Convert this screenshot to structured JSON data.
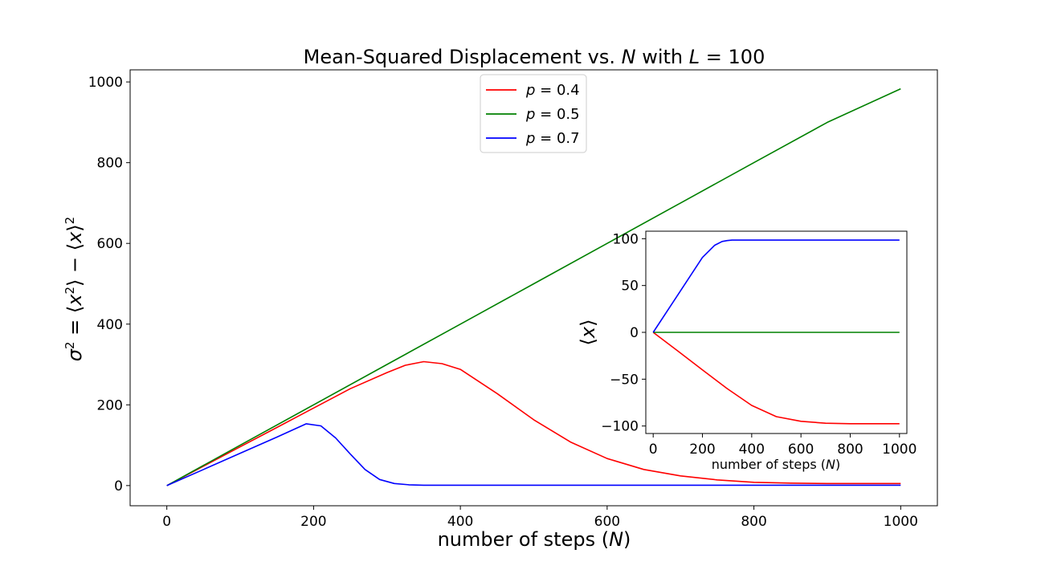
{
  "chart_data": [
    {
      "type": "line",
      "title": "Mean-Squared Displacement  vs. N with L = 100",
      "xlabel": "number of steps (N)",
      "ylabel": "σ² = ⟨x²⟩ − ⟨x⟩²",
      "xlim": [
        -50,
        1050
      ],
      "ylim": [
        -50,
        1030
      ],
      "xticks": [
        0,
        200,
        400,
        600,
        800,
        1000
      ],
      "yticks": [
        0,
        200,
        400,
        600,
        800,
        1000
      ],
      "grid": false,
      "legend": {
        "placement": "top-center",
        "entries": [
          {
            "label": "p = 0.4",
            "color": "#ff0000"
          },
          {
            "label": "p = 0.5",
            "color": "#008000"
          },
          {
            "label": "p = 0.7",
            "color": "#0000ff"
          }
        ]
      },
      "series": [
        {
          "name": "p = 0.4",
          "color": "#ff0000",
          "x": [
            0,
            50,
            100,
            150,
            200,
            250,
            300,
            325,
            350,
            375,
            400,
            450,
            500,
            550,
            600,
            650,
            700,
            750,
            800,
            850,
            900,
            950,
            1000
          ],
          "y": [
            0,
            48,
            96,
            144,
            192,
            240,
            280,
            298,
            307,
            302,
            288,
            228,
            163,
            108,
            67,
            40,
            24,
            14,
            8,
            6,
            5,
            5,
            5
          ]
        },
        {
          "name": "p = 0.5",
          "color": "#008000",
          "x": [
            0,
            100,
            200,
            300,
            400,
            500,
            600,
            700,
            800,
            900,
            1000
          ],
          "y": [
            0,
            100,
            200,
            300,
            400,
            500,
            600,
            700,
            800,
            900,
            983
          ]
        },
        {
          "name": "p = 0.7",
          "color": "#0000ff",
          "x": [
            0,
            50,
            100,
            150,
            190,
            210,
            230,
            250,
            270,
            290,
            310,
            330,
            350,
            400,
            500,
            600,
            700,
            800,
            900,
            1000
          ],
          "y": [
            0,
            40,
            80,
            120,
            153,
            148,
            118,
            78,
            40,
            15,
            5,
            2,
            1,
            1,
            1,
            1,
            1,
            1,
            1,
            1
          ]
        }
      ]
    },
    {
      "type": "line",
      "title": "",
      "xlabel": "number of steps (N)",
      "ylabel": "⟨x⟩",
      "xlim": [
        -30,
        1030
      ],
      "ylim": [
        -108,
        108
      ],
      "xticks": [
        0,
        200,
        400,
        600,
        800,
        1000
      ],
      "yticks": [
        -100,
        -50,
        0,
        50,
        100
      ],
      "grid": false,
      "placement": "inset-right",
      "series": [
        {
          "color": "#ff0000",
          "x": [
            0,
            100,
            200,
            300,
            400,
            500,
            600,
            700,
            800,
            900,
            1000
          ],
          "y": [
            0,
            -20,
            -40,
            -60,
            -78,
            -90,
            -95,
            -97,
            -97.5,
            -97.5,
            -97.5
          ]
        },
        {
          "color": "#008000",
          "x": [
            0,
            500,
            1000
          ],
          "y": [
            0,
            0,
            0
          ]
        },
        {
          "color": "#0000ff",
          "x": [
            0,
            100,
            200,
            250,
            280,
            300,
            320,
            400,
            600,
            800,
            1000
          ],
          "y": [
            0,
            40,
            80,
            93,
            97,
            98,
            98.5,
            98.5,
            98.5,
            98.5,
            98.5
          ]
        }
      ]
    }
  ]
}
